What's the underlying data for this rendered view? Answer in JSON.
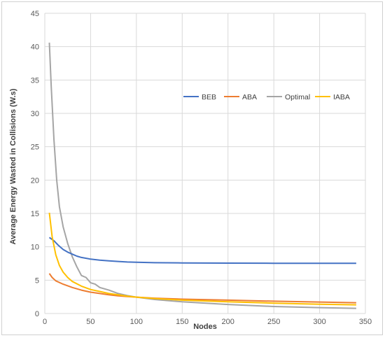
{
  "chart_data": {
    "type": "line",
    "title": "",
    "xlabel": "Nodes",
    "ylabel": "Average Energy Wasted in Collisions (W.s)",
    "xlim": [
      0,
      350
    ],
    "ylim": [
      0,
      45
    ],
    "xticks": [
      0,
      50,
      100,
      150,
      200,
      250,
      300,
      350
    ],
    "yticks": [
      0,
      5,
      10,
      15,
      20,
      25,
      30,
      35,
      40,
      45
    ],
    "grid": true,
    "legend_position": "right",
    "series": [
      {
        "name": "BEB",
        "color": "#4472c4",
        "points": [
          [
            5,
            11.4
          ],
          [
            10,
            10.9
          ],
          [
            15,
            10.2
          ],
          [
            20,
            9.6
          ],
          [
            25,
            9.2
          ],
          [
            30,
            8.9
          ],
          [
            35,
            8.6
          ],
          [
            40,
            8.4
          ],
          [
            50,
            8.15
          ],
          [
            60,
            8.0
          ],
          [
            70,
            7.9
          ],
          [
            80,
            7.8
          ],
          [
            90,
            7.72
          ],
          [
            100,
            7.68
          ],
          [
            120,
            7.62
          ],
          [
            150,
            7.58
          ],
          [
            200,
            7.55
          ],
          [
            250,
            7.53
          ],
          [
            300,
            7.52
          ],
          [
            340,
            7.52
          ]
        ]
      },
      {
        "name": "ABA",
        "color": "#ed7d31",
        "points": [
          [
            5,
            6.0
          ],
          [
            8,
            5.4
          ],
          [
            12,
            4.9
          ],
          [
            20,
            4.4
          ],
          [
            30,
            3.9
          ],
          [
            40,
            3.5
          ],
          [
            50,
            3.2
          ],
          [
            60,
            3.0
          ],
          [
            70,
            2.8
          ],
          [
            80,
            2.65
          ],
          [
            90,
            2.55
          ],
          [
            100,
            2.45
          ],
          [
            120,
            2.3
          ],
          [
            150,
            2.15
          ],
          [
            200,
            2.0
          ],
          [
            250,
            1.85
          ],
          [
            300,
            1.72
          ],
          [
            340,
            1.62
          ]
        ]
      },
      {
        "name": "Optimal",
        "color": "#a5a5a5",
        "points": [
          [
            5,
            40.6
          ],
          [
            7,
            34
          ],
          [
            10,
            26
          ],
          [
            13,
            20
          ],
          [
            16,
            16
          ],
          [
            20,
            13
          ],
          [
            25,
            10.5
          ],
          [
            30,
            8.5
          ],
          [
            35,
            7.0
          ],
          [
            40,
            5.7
          ],
          [
            45,
            5.4
          ],
          [
            50,
            4.6
          ],
          [
            55,
            4.4
          ],
          [
            60,
            3.9
          ],
          [
            70,
            3.5
          ],
          [
            80,
            3.0
          ],
          [
            90,
            2.7
          ],
          [
            100,
            2.45
          ],
          [
            120,
            2.1
          ],
          [
            150,
            1.75
          ],
          [
            200,
            1.35
          ],
          [
            250,
            1.05
          ],
          [
            300,
            0.88
          ],
          [
            340,
            0.78
          ]
        ]
      },
      {
        "name": "IABA",
        "color": "#ffc000",
        "points": [
          [
            5,
            15.1
          ],
          [
            8,
            11.5
          ],
          [
            12,
            8.8
          ],
          [
            16,
            7.2
          ],
          [
            20,
            6.2
          ],
          [
            25,
            5.4
          ],
          [
            30,
            4.8
          ],
          [
            40,
            4.1
          ],
          [
            50,
            3.6
          ],
          [
            60,
            3.3
          ],
          [
            70,
            3.0
          ],
          [
            80,
            2.8
          ],
          [
            90,
            2.6
          ],
          [
            100,
            2.45
          ],
          [
            120,
            2.25
          ],
          [
            150,
            2.0
          ],
          [
            200,
            1.75
          ],
          [
            250,
            1.55
          ],
          [
            300,
            1.4
          ],
          [
            340,
            1.3
          ]
        ]
      }
    ]
  }
}
